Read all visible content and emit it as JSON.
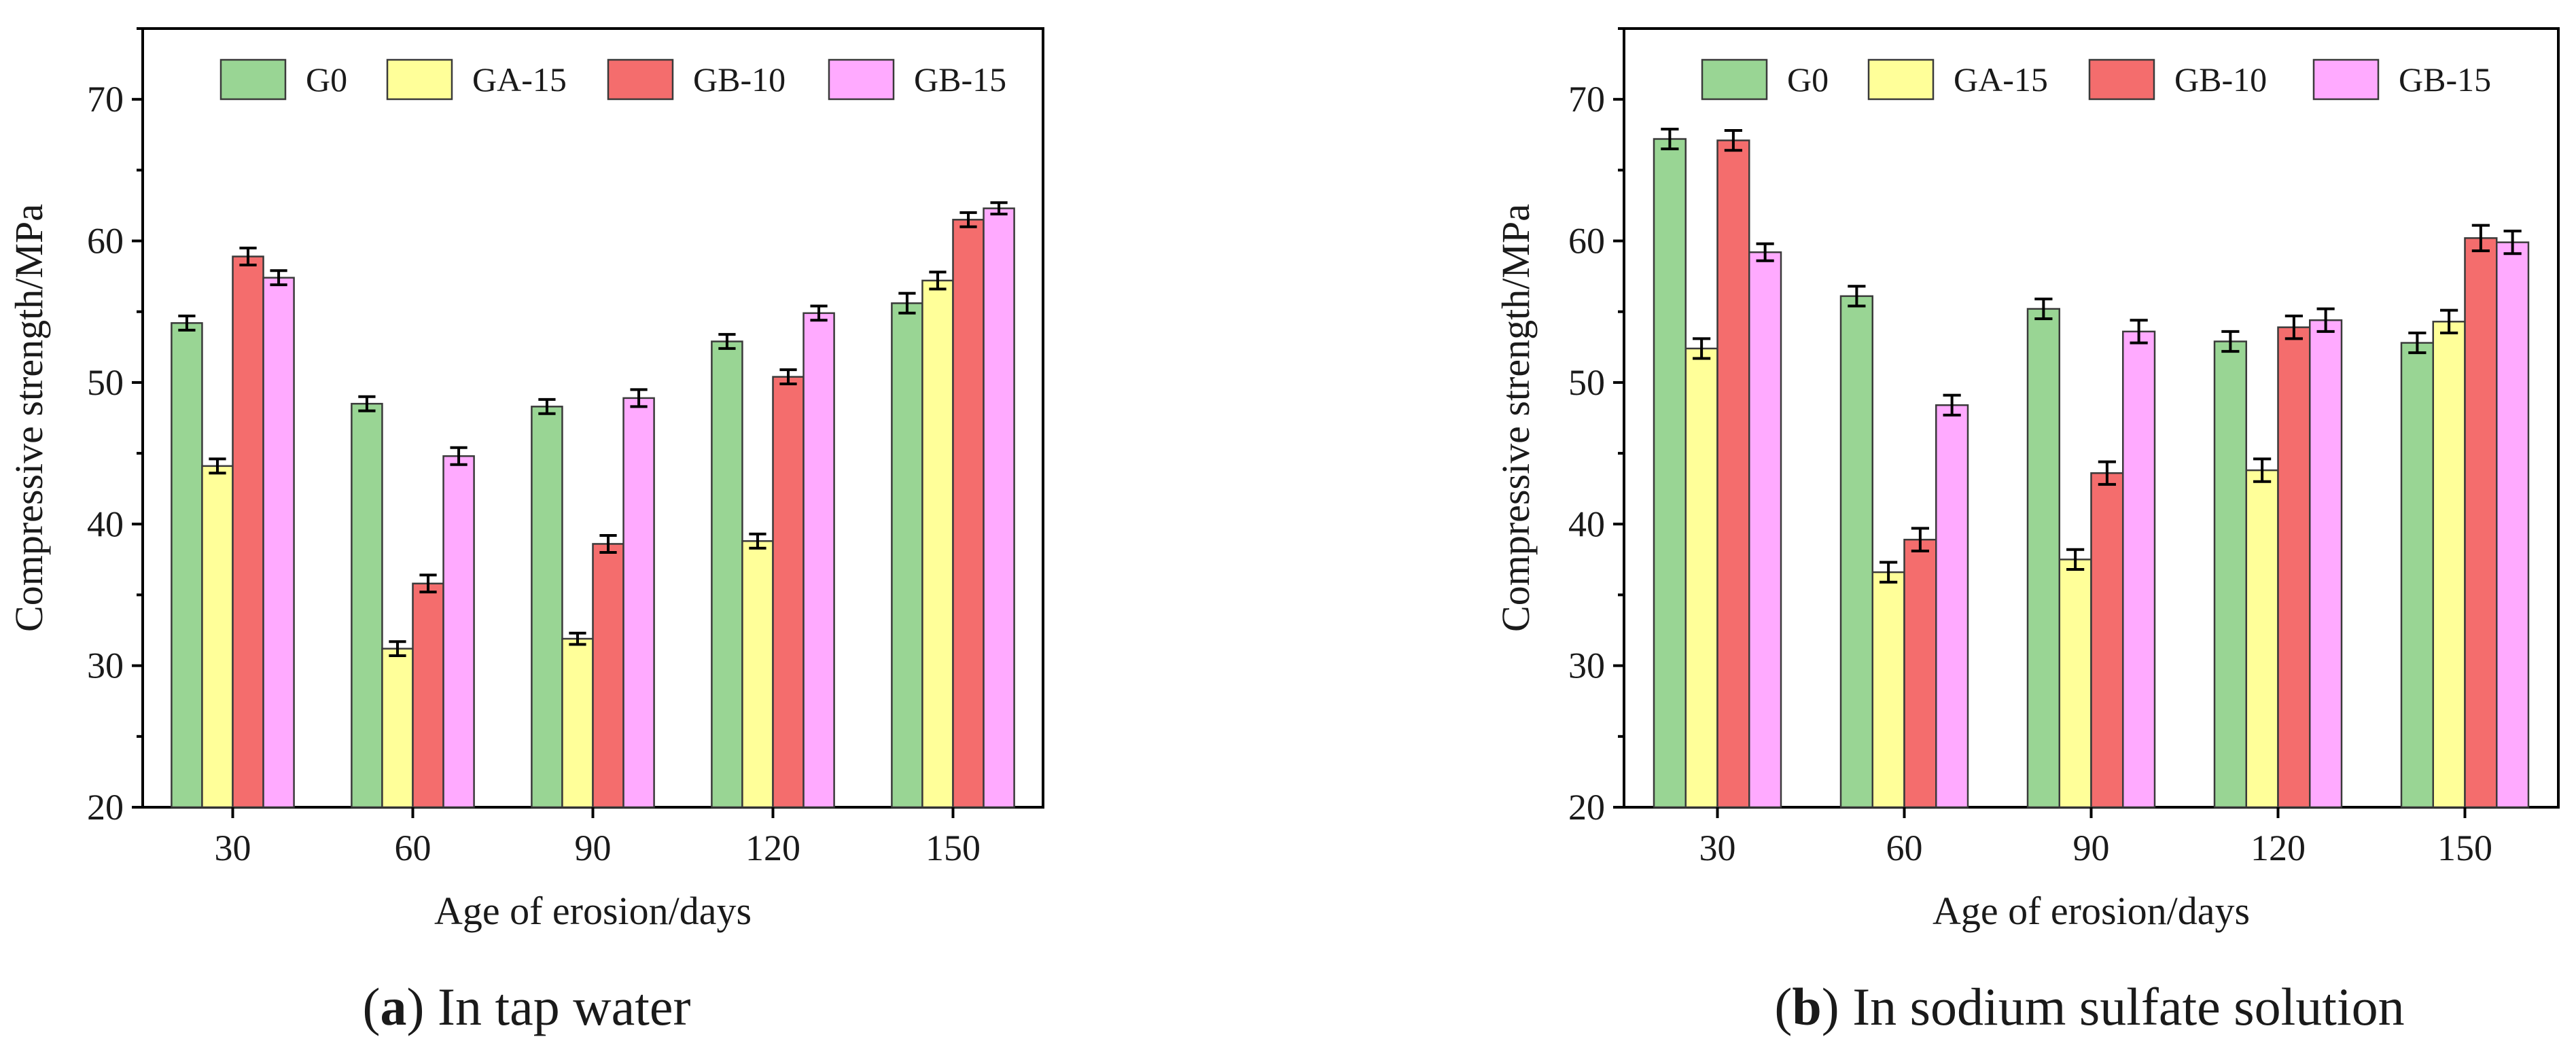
{
  "chart_data": [
    {
      "type": "bar",
      "panel": "a",
      "caption_letter": "a",
      "caption_open": "(",
      "caption_close": ")",
      "caption_text": " In tap water",
      "xlabel": "Age of erosion/days",
      "ylabel": "Compressive strength/MPa",
      "ylim": [
        20,
        75
      ],
      "yticks": [
        20,
        30,
        40,
        50,
        60,
        70
      ],
      "categories": [
        "30",
        "60",
        "90",
        "120",
        "150"
      ],
      "legend_position": "top",
      "grid": false,
      "series": [
        {
          "name": "G0",
          "color": "#99d594",
          "values": [
            54.2,
            48.5,
            48.3,
            52.9,
            55.6
          ],
          "errors": [
            0.5,
            0.5,
            0.5,
            0.5,
            0.7
          ]
        },
        {
          "name": "GA-15",
          "color": "#ffff99",
          "values": [
            44.1,
            31.2,
            31.9,
            38.8,
            57.2
          ],
          "errors": [
            0.5,
            0.5,
            0.4,
            0.5,
            0.6
          ]
        },
        {
          "name": "GB-10",
          "color": "#f46d6d",
          "values": [
            58.9,
            35.8,
            38.6,
            50.4,
            61.5
          ],
          "errors": [
            0.6,
            0.6,
            0.6,
            0.5,
            0.5
          ]
        },
        {
          "name": "GB-15",
          "color": "#ffaaff",
          "values": [
            57.4,
            44.8,
            48.9,
            54.9,
            62.3
          ],
          "errors": [
            0.5,
            0.6,
            0.6,
            0.5,
            0.4
          ]
        }
      ]
    },
    {
      "type": "bar",
      "panel": "b",
      "caption_letter": "b",
      "caption_open": "(",
      "caption_close": ")",
      "caption_text": " In sodium sulfate solution",
      "xlabel": "Age of erosion/days",
      "ylabel": "Compressive strength/MPa",
      "ylim": [
        20,
        75
      ],
      "yticks": [
        20,
        30,
        40,
        50,
        60,
        70
      ],
      "categories": [
        "30",
        "60",
        "90",
        "120",
        "150"
      ],
      "legend_position": "top",
      "grid": false,
      "series": [
        {
          "name": "G0",
          "color": "#99d594",
          "values": [
            67.2,
            56.1,
            55.2,
            52.9,
            52.8
          ],
          "errors": [
            0.7,
            0.7,
            0.7,
            0.7,
            0.7
          ]
        },
        {
          "name": "GA-15",
          "color": "#ffff99",
          "values": [
            52.4,
            36.6,
            37.5,
            43.8,
            54.3
          ],
          "errors": [
            0.7,
            0.7,
            0.7,
            0.8,
            0.8
          ]
        },
        {
          "name": "GB-10",
          "color": "#f46d6d",
          "values": [
            67.1,
            38.9,
            43.6,
            53.9,
            60.2
          ],
          "errors": [
            0.7,
            0.8,
            0.8,
            0.8,
            0.9
          ]
        },
        {
          "name": "GB-15",
          "color": "#ffaaff",
          "values": [
            59.2,
            48.4,
            53.6,
            54.4,
            59.9
          ],
          "errors": [
            0.6,
            0.7,
            0.8,
            0.8,
            0.8
          ]
        }
      ]
    }
  ]
}
